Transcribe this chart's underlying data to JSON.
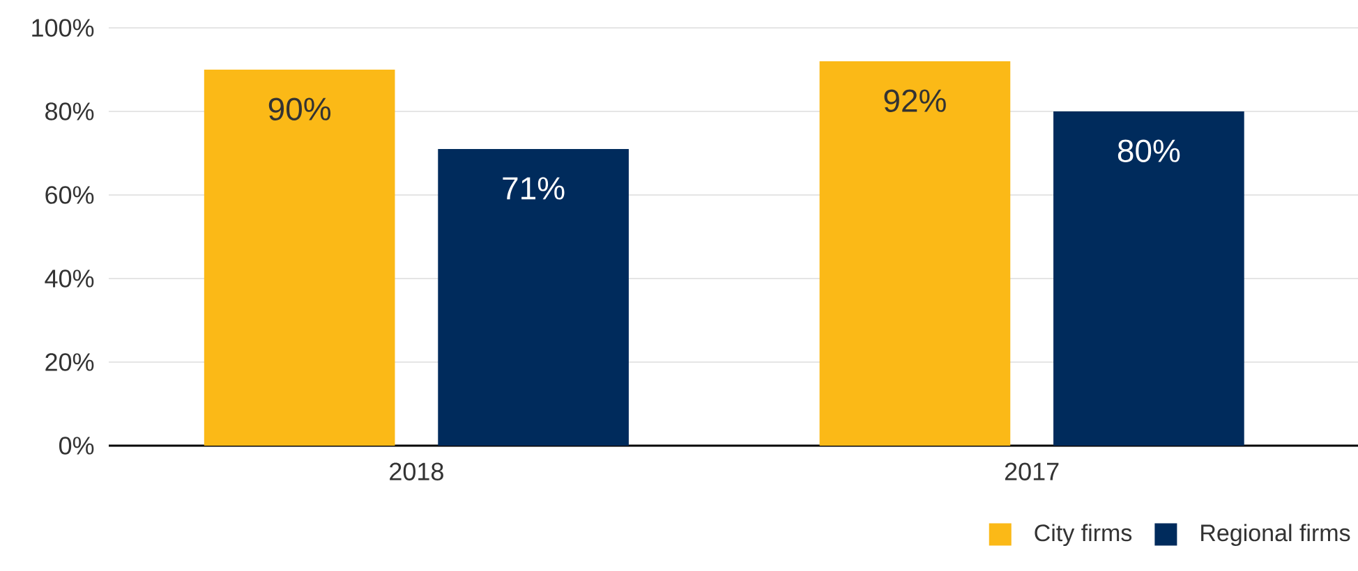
{
  "chart_data": {
    "type": "bar",
    "categories": [
      "2018",
      "2017"
    ],
    "series": [
      {
        "name": "City firms",
        "color": "#fbb917",
        "values": [
          90,
          92
        ],
        "value_labels": [
          "90%",
          "92%"
        ]
      },
      {
        "name": "Regional firms",
        "color": "#002b5c",
        "values": [
          71,
          80
        ],
        "value_labels": [
          "71%",
          "80%"
        ]
      }
    ],
    "ylim": [
      0,
      100
    ],
    "yticks": [
      {
        "value": 0,
        "label": "0%"
      },
      {
        "value": 20,
        "label": "20%"
      },
      {
        "value": 40,
        "label": "40%"
      },
      {
        "value": 60,
        "label": "60%"
      },
      {
        "value": 80,
        "label": "80%"
      },
      {
        "value": 100,
        "label": "100%"
      }
    ],
    "grid": "y",
    "legend": "bottom right"
  }
}
